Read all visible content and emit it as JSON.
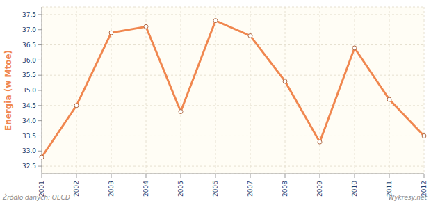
{
  "chart_data": {
    "type": "line",
    "y_label": "Energia (w Mtoe)",
    "source": "Źródło danych: OECD",
    "credit": "Wykresy.net",
    "categories": [
      "2001",
      "2002",
      "2003",
      "2004",
      "2005",
      "2006",
      "2007",
      "2008",
      "2009",
      "2010",
      "2011",
      "2012"
    ],
    "values": [
      32.8,
      34.5,
      36.9,
      37.1,
      34.3,
      37.3,
      36.8,
      35.3,
      33.3,
      36.4,
      34.7,
      33.5
    ],
    "color": "#f0874f",
    "marker": "circle",
    "ylim": [
      32.25,
      37.75
    ],
    "yticks": [
      32.5,
      {
        "value": 33,
        "label": "33.0"
      },
      33.5,
      {
        "value": 34,
        "label": "34.0"
      },
      34.5,
      {
        "value": 35,
        "label": "35.0"
      },
      35.5,
      {
        "value": 36,
        "label": "36.0"
      },
      36.5,
      {
        "value": 37,
        "label": "37.0"
      },
      37.5
    ],
    "grid": true
  }
}
